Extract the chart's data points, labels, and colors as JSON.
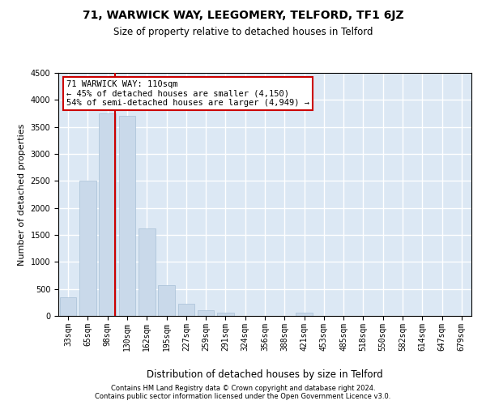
{
  "title": "71, WARWICK WAY, LEEGOMERY, TELFORD, TF1 6JZ",
  "subtitle": "Size of property relative to detached houses in Telford",
  "xlabel": "Distribution of detached houses by size in Telford",
  "ylabel": "Number of detached properties",
  "categories": [
    "33sqm",
    "65sqm",
    "98sqm",
    "130sqm",
    "162sqm",
    "195sqm",
    "227sqm",
    "259sqm",
    "291sqm",
    "324sqm",
    "356sqm",
    "388sqm",
    "421sqm",
    "453sqm",
    "485sqm",
    "518sqm",
    "550sqm",
    "582sqm",
    "614sqm",
    "647sqm",
    "679sqm"
  ],
  "values": [
    350,
    2500,
    3750,
    3700,
    1625,
    575,
    225,
    100,
    60,
    0,
    0,
    0,
    55,
    0,
    0,
    0,
    0,
    0,
    0,
    0,
    0
  ],
  "bar_color": "#c9d9ea",
  "bar_edge_color": "#a8c0d6",
  "red_line_x": 2.37,
  "annotation_text": "71 WARWICK WAY: 110sqm\n← 45% of detached houses are smaller (4,150)\n54% of semi-detached houses are larger (4,949) →",
  "annotation_box_color": "#ffffff",
  "annotation_box_edge": "#cc0000",
  "ylim": [
    0,
    4500
  ],
  "yticks": [
    0,
    500,
    1000,
    1500,
    2000,
    2500,
    3000,
    3500,
    4000,
    4500
  ],
  "background_color": "#dce8f4",
  "grid_color": "#ffffff",
  "footer_line1": "Contains HM Land Registry data © Crown copyright and database right 2024.",
  "footer_line2": "Contains public sector information licensed under the Open Government Licence v3.0.",
  "title_fontsize": 10,
  "subtitle_fontsize": 8.5,
  "tick_fontsize": 7,
  "ylabel_fontsize": 8,
  "xlabel_fontsize": 8.5,
  "red_line_color": "#cc0000",
  "footer_fontsize": 6,
  "annot_fontsize": 7.5
}
